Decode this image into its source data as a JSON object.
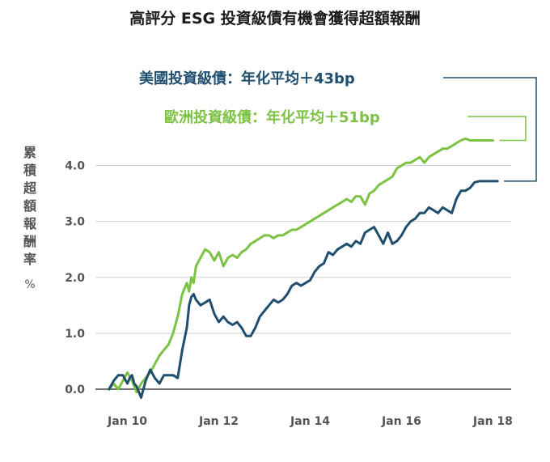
{
  "chart_data": {
    "type": "line",
    "title": "高評分 ESG 投資級債有機會獲得超額報酬",
    "ylabel": "累積超額報酬率",
    "yunit": "%",
    "ylim": [
      0,
      4.5
    ],
    "yticks": [
      "0.0",
      "1.0",
      "2.0",
      "3.0",
      "4.0"
    ],
    "xticks": [
      "Jan 10",
      "Jan 12",
      "Jan 14",
      "Jan 16",
      "Jan 18"
    ],
    "grid": true,
    "series": [
      {
        "name": "美國投資級債：年化平均＋43bp",
        "color": "#1f4e6e",
        "x": [
          2009.6,
          2009.7,
          2009.8,
          2009.9,
          2010.0,
          2010.05,
          2010.1,
          2010.15,
          2010.2,
          2010.3,
          2010.4,
          2010.5,
          2010.6,
          2010.7,
          2010.8,
          2010.9,
          2011.0,
          2011.1,
          2011.2,
          2011.3,
          2011.35,
          2011.4,
          2011.45,
          2011.5,
          2011.6,
          2011.7,
          2011.8,
          2011.9,
          2012.0,
          2012.1,
          2012.2,
          2012.3,
          2012.4,
          2012.5,
          2012.6,
          2012.7,
          2012.8,
          2012.9,
          2013.0,
          2013.1,
          2013.2,
          2013.3,
          2013.4,
          2013.5,
          2013.6,
          2013.7,
          2013.8,
          2013.9,
          2014.0,
          2014.1,
          2014.2,
          2014.3,
          2014.4,
          2014.5,
          2014.6,
          2014.7,
          2014.8,
          2014.9,
          2015.0,
          2015.1,
          2015.2,
          2015.3,
          2015.4,
          2015.5,
          2015.6,
          2015.7,
          2015.8,
          2015.9,
          2016.0,
          2016.1,
          2016.2,
          2016.3,
          2016.4,
          2016.5,
          2016.6,
          2016.7,
          2016.8,
          2016.9,
          2017.0,
          2017.1,
          2017.2,
          2017.3,
          2017.4,
          2017.5,
          2017.6,
          2017.7,
          2017.8,
          2017.9,
          2018.0,
          2018.1
        ],
        "values": [
          0.0,
          0.15,
          0.25,
          0.25,
          0.1,
          0.2,
          0.25,
          0.1,
          0.05,
          -0.15,
          0.15,
          0.35,
          0.2,
          0.1,
          0.25,
          0.25,
          0.25,
          0.2,
          0.7,
          1.1,
          1.5,
          1.65,
          1.7,
          1.6,
          1.5,
          1.55,
          1.6,
          1.35,
          1.2,
          1.3,
          1.2,
          1.15,
          1.2,
          1.1,
          0.95,
          0.95,
          1.1,
          1.3,
          1.4,
          1.5,
          1.6,
          1.55,
          1.6,
          1.7,
          1.85,
          1.9,
          1.85,
          1.9,
          1.95,
          2.1,
          2.2,
          2.25,
          2.45,
          2.4,
          2.5,
          2.55,
          2.6,
          2.55,
          2.65,
          2.6,
          2.8,
          2.85,
          2.9,
          2.75,
          2.6,
          2.8,
          2.6,
          2.65,
          2.75,
          2.9,
          3.0,
          3.05,
          3.15,
          3.15,
          3.25,
          3.2,
          3.15,
          3.25,
          3.2,
          3.15,
          3.4,
          3.55,
          3.55,
          3.6,
          3.7,
          3.72,
          3.72,
          3.72,
          3.72,
          3.72
        ]
      },
      {
        "name": "歐洲投資級債：年化平均＋51bp",
        "color": "#7cc243",
        "x": [
          2009.6,
          2009.7,
          2009.8,
          2009.9,
          2010.0,
          2010.1,
          2010.2,
          2010.3,
          2010.4,
          2010.5,
          2010.6,
          2010.7,
          2010.8,
          2010.9,
          2011.0,
          2011.1,
          2011.2,
          2011.3,
          2011.35,
          2011.4,
          2011.45,
          2011.5,
          2011.6,
          2011.7,
          2011.8,
          2011.9,
          2012.0,
          2012.1,
          2012.2,
          2012.3,
          2012.4,
          2012.5,
          2012.6,
          2012.7,
          2012.8,
          2012.9,
          2013.0,
          2013.1,
          2013.2,
          2013.3,
          2013.4,
          2013.5,
          2013.6,
          2013.7,
          2013.8,
          2013.9,
          2014.0,
          2014.1,
          2014.2,
          2014.3,
          2014.4,
          2014.5,
          2014.6,
          2014.7,
          2014.8,
          2014.9,
          2015.0,
          2015.1,
          2015.2,
          2015.3,
          2015.4,
          2015.5,
          2015.6,
          2015.7,
          2015.8,
          2015.9,
          2016.0,
          2016.1,
          2016.2,
          2016.3,
          2016.4,
          2016.5,
          2016.6,
          2016.7,
          2016.8,
          2016.9,
          2017.0,
          2017.1,
          2017.2,
          2017.3,
          2017.4,
          2017.5,
          2017.6,
          2017.7,
          2017.8,
          2017.9,
          2018.0
        ],
        "values": [
          0.0,
          0.1,
          0.0,
          0.15,
          0.3,
          0.15,
          -0.05,
          0.1,
          0.2,
          0.3,
          0.45,
          0.6,
          0.7,
          0.8,
          1.0,
          1.3,
          1.7,
          1.9,
          1.75,
          2.0,
          1.9,
          2.2,
          2.35,
          2.5,
          2.45,
          2.3,
          2.45,
          2.2,
          2.35,
          2.4,
          2.35,
          2.45,
          2.5,
          2.6,
          2.65,
          2.7,
          2.75,
          2.75,
          2.7,
          2.75,
          2.75,
          2.8,
          2.85,
          2.85,
          2.9,
          2.95,
          3.0,
          3.05,
          3.1,
          3.15,
          3.2,
          3.25,
          3.3,
          3.35,
          3.4,
          3.35,
          3.45,
          3.45,
          3.3,
          3.5,
          3.55,
          3.65,
          3.7,
          3.75,
          3.8,
          3.95,
          4.0,
          4.05,
          4.05,
          4.1,
          4.15,
          4.05,
          4.15,
          4.2,
          4.25,
          4.3,
          4.3,
          4.35,
          4.4,
          4.45,
          4.48,
          4.45,
          4.45,
          4.45,
          4.45,
          4.45,
          4.45
        ]
      }
    ]
  }
}
